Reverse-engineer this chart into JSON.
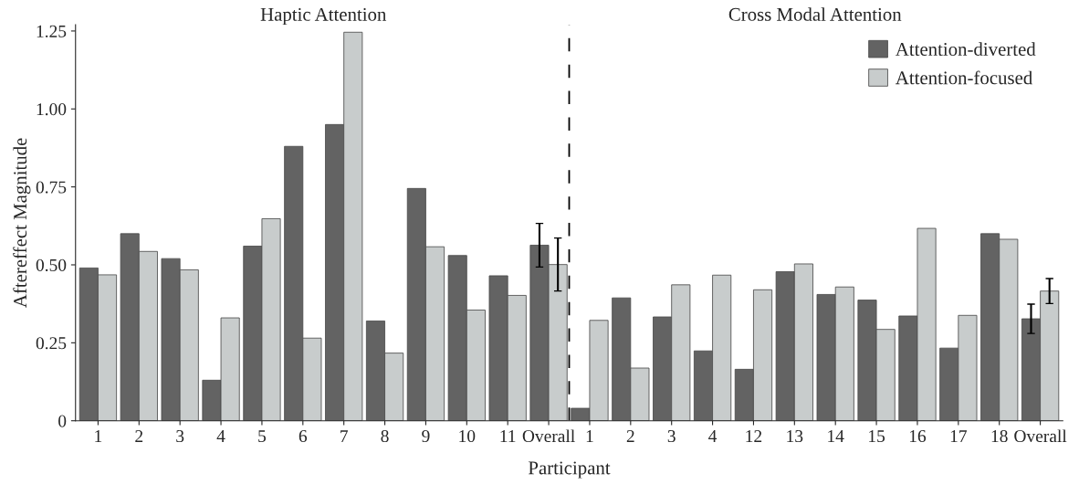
{
  "chart_data": {
    "type": "bar",
    "xlabel": "Participant",
    "ylabel": "Aftereffect Magnitude",
    "annotations": [
      "Haptic Attention",
      "Cross Modal Attention"
    ],
    "categories": [
      "1",
      "2",
      "3",
      "4",
      "5",
      "6",
      "7",
      "8",
      "9",
      "10",
      "11",
      "Overall",
      "1",
      "2",
      "3",
      "4",
      "12",
      "13",
      "14",
      "15",
      "16",
      "17",
      "18",
      "Overall"
    ],
    "series": [
      {
        "name": "Attention-diverted",
        "color": "#636363",
        "values": [
          0.49,
          0.6,
          0.52,
          0.13,
          0.56,
          0.88,
          0.95,
          0.32,
          0.745,
          0.53,
          0.465,
          0.563,
          0.04,
          0.394,
          0.333,
          0.224,
          0.165,
          0.478,
          0.405,
          0.387,
          0.336,
          0.233,
          0.6,
          0.327
        ],
        "errors": [
          null,
          null,
          null,
          null,
          null,
          null,
          null,
          null,
          null,
          null,
          null,
          0.07,
          null,
          null,
          null,
          null,
          null,
          null,
          null,
          null,
          null,
          null,
          null,
          0.047
        ]
      },
      {
        "name": "Attention-focused",
        "color": "#c8cccc",
        "values": [
          0.468,
          0.543,
          0.484,
          0.33,
          0.648,
          0.265,
          1.246,
          0.217,
          0.558,
          0.355,
          0.402,
          0.501,
          0.322,
          0.169,
          0.436,
          0.467,
          0.42,
          0.503,
          0.429,
          0.293,
          0.617,
          0.338,
          0.582,
          0.416
        ],
        "errors": [
          null,
          null,
          null,
          null,
          null,
          null,
          null,
          null,
          null,
          null,
          null,
          0.085,
          null,
          null,
          null,
          null,
          null,
          null,
          null,
          null,
          null,
          null,
          null,
          0.04
        ]
      }
    ],
    "ylim": [
      0,
      1.27
    ],
    "yticks": [
      0,
      {
        "value": 0.25,
        "label": "0.25"
      },
      {
        "value": 0.5,
        "label": "0.50"
      },
      {
        "value": 0.75,
        "label": "0.75"
      },
      {
        "value": 1.0,
        "label": "1.00"
      },
      {
        "value": 1.25,
        "label": "1.25"
      }
    ],
    "legend": "right",
    "grid": false
  }
}
